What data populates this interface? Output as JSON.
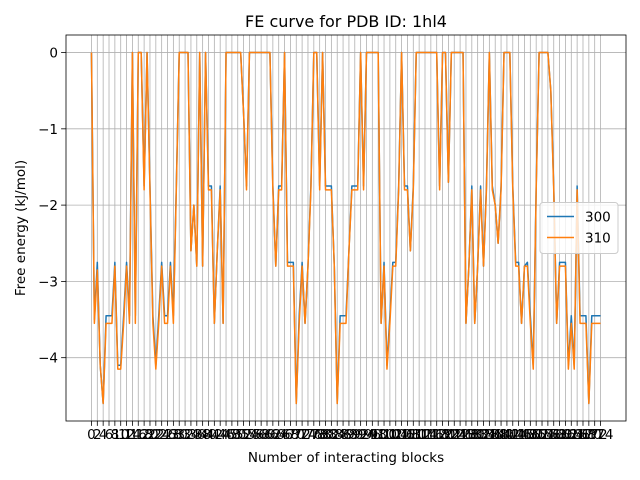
{
  "chart_data": {
    "type": "line",
    "title": "FE curve for PDB ID: 1hl4",
    "xlabel": "Number of interacting blocks",
    "ylabel": "Free energy (kJ/mol)",
    "x": [
      0,
      1,
      2,
      3,
      4,
      5,
      6,
      7,
      8,
      9,
      10,
      11,
      12,
      13,
      14,
      15,
      16,
      17,
      18,
      19,
      20,
      21,
      22,
      23,
      24,
      25,
      26,
      27,
      28,
      29,
      30,
      31,
      32,
      33,
      34,
      35,
      36,
      37,
      38,
      39,
      40,
      41,
      42,
      43,
      44,
      45,
      46,
      47,
      48,
      49,
      50,
      51,
      52,
      53,
      54,
      55,
      56,
      57,
      58,
      59,
      60,
      61,
      62,
      63,
      64,
      65,
      66,
      67,
      68,
      69,
      70,
      71,
      72,
      73,
      74,
      75,
      76,
      77,
      78,
      79,
      80,
      81,
      82,
      83,
      84,
      85,
      86,
      87,
      88,
      89,
      90,
      91,
      92,
      93,
      94,
      95,
      96,
      97,
      98,
      99,
      100,
      101,
      102,
      103,
      104,
      105,
      106,
      107,
      108,
      109,
      110,
      111,
      112,
      113,
      114,
      115,
      116,
      117,
      118,
      119,
      120,
      121,
      122,
      123,
      124,
      125,
      126,
      127,
      128,
      129,
      130,
      131,
      132,
      133,
      134,
      135,
      136,
      137,
      138,
      139,
      140,
      141,
      142,
      143,
      144,
      145,
      146,
      147,
      148,
      149,
      150,
      151,
      152,
      153,
      154,
      155,
      156,
      157,
      158,
      159,
      160,
      161,
      162,
      163,
      164,
      165,
      166,
      167,
      168,
      169,
      170,
      171,
      172,
      173,
      174
    ],
    "series": [
      {
        "name": "300",
        "color": "#1f77b4",
        "values": [
          0,
          -3.5,
          -2.75,
          -4.1,
          -4.6,
          -3.45,
          -3.45,
          -3.45,
          -2.75,
          -4.1,
          -4.1,
          -3.45,
          -2.75,
          -3.45,
          0,
          -3.45,
          0,
          0,
          -1.75,
          0,
          -1.75,
          -3.45,
          -4.1,
          -3.45,
          -2.75,
          -3.45,
          -3.45,
          -2.75,
          -3.45,
          -1.75,
          0,
          0,
          0,
          0,
          -2.6,
          -2,
          -2.8,
          0,
          -2.8,
          0,
          -1.75,
          -1.75,
          -3.55,
          -2.6,
          -1.75,
          -3.55,
          0,
          0,
          0,
          0,
          0,
          0,
          -0.8,
          -1.75,
          0,
          0,
          0,
          0,
          0,
          0,
          0,
          0,
          -1.75,
          -2.8,
          -1.75,
          -1.75,
          0,
          -2.75,
          -2.75,
          -2.75,
          -4.6,
          -3.45,
          -2.75,
          -3.55,
          -2.8,
          -1.75,
          0,
          0,
          -1.75,
          0,
          -1.75,
          -1.75,
          -1.75,
          -2.8,
          -4.6,
          -3.45,
          -3.45,
          -3.45,
          -2.6,
          -1.75,
          -1.75,
          -1.75,
          0,
          -1.75,
          0,
          0,
          0,
          0,
          0,
          -3.55,
          -2.75,
          -4.1,
          -3.45,
          -2.75,
          -2.75,
          -1.75,
          0,
          -1.75,
          -1.75,
          -2.6,
          -1.75,
          0,
          0,
          0,
          0,
          0,
          0,
          0,
          0,
          -1.75,
          0,
          0,
          -1.7,
          0,
          0,
          0,
          0,
          0,
          -3.55,
          -2.8,
          -1.75,
          -3.55,
          -2.8,
          -1.75,
          -2.8,
          -1.75,
          0,
          -1.75,
          -2,
          -2.5,
          -1.75,
          0,
          0,
          0,
          -1.75,
          -2.75,
          -2.75,
          -3.55,
          -2.8,
          -2.75,
          -3.45,
          -4.1,
          -1.75,
          0,
          0,
          0,
          0,
          -0.5,
          -1.75,
          -3.55,
          -2.75,
          -2.75,
          -2.75,
          -4.1,
          -3.45,
          -4.1,
          -1.75,
          -3.45,
          -3.45,
          -3.45,
          -4.6,
          -3.45,
          -3.45,
          -3.45,
          -3.45
        ]
      },
      {
        "name": "310",
        "color": "#ff7f0e",
        "values": [
          0,
          -3.55,
          -2.85,
          -4.1,
          -4.6,
          -3.55,
          -3.55,
          -3.55,
          -2.8,
          -4.15,
          -4.15,
          -3.55,
          -2.8,
          -3.55,
          0,
          -3.55,
          0,
          0,
          -1.8,
          0,
          -1.8,
          -3.55,
          -4.15,
          -3.55,
          -2.8,
          -3.55,
          -3.55,
          -2.8,
          -3.55,
          -1.8,
          0,
          0,
          0,
          0,
          -2.6,
          -2,
          -2.8,
          0,
          -2.8,
          0,
          -1.8,
          -1.8,
          -3.55,
          -2.6,
          -1.8,
          -3.55,
          0,
          0,
          0,
          0,
          0,
          0,
          -0.8,
          -1.8,
          0,
          0,
          0,
          0,
          0,
          0,
          0,
          0,
          -1.8,
          -2.8,
          -1.8,
          -1.8,
          0,
          -2.8,
          -2.8,
          -2.8,
          -4.6,
          -3.55,
          -2.8,
          -3.55,
          -2.8,
          -1.8,
          0,
          0,
          -1.8,
          0,
          -1.8,
          -1.8,
          -1.8,
          -2.8,
          -4.6,
          -3.55,
          -3.55,
          -3.55,
          -2.6,
          -1.8,
          -1.8,
          -1.8,
          0,
          -1.8,
          0,
          0,
          0,
          0,
          0,
          -3.55,
          -2.8,
          -4.15,
          -3.55,
          -2.8,
          -2.8,
          -1.8,
          0,
          -1.8,
          -1.8,
          -2.6,
          -1.8,
          0,
          0,
          0,
          0,
          0,
          0,
          0,
          0,
          -1.8,
          0,
          0,
          -1.7,
          0,
          0,
          0,
          0,
          0,
          -3.55,
          -2.8,
          -1.8,
          -3.55,
          -2.8,
          -1.8,
          -2.8,
          -1.8,
          0,
          -1.8,
          -2,
          -2.5,
          -1.8,
          0,
          0,
          0,
          -1.8,
          -2.8,
          -2.8,
          -3.55,
          -2.8,
          -2.8,
          -3.55,
          -4.15,
          -1.8,
          0,
          0,
          0,
          0,
          -0.5,
          -1.8,
          -3.55,
          -2.8,
          -2.8,
          -2.8,
          -4.15,
          -3.55,
          -4.15,
          -1.8,
          -3.55,
          -3.55,
          -3.55,
          -4.6,
          -3.55,
          -3.55,
          -3.55,
          -3.55
        ]
      }
    ],
    "xlim": [
      -8.7,
      182.7
    ],
    "ylim": [
      -4.83,
      0.23
    ],
    "xticks": [
      0,
      2,
      4,
      6,
      8,
      10,
      12,
      14,
      16,
      18,
      20,
      22,
      24,
      26,
      28,
      30,
      32,
      34,
      36,
      38,
      40,
      42,
      44,
      46,
      48,
      50,
      52,
      54,
      56,
      58,
      60,
      62,
      64,
      66,
      68,
      70,
      72,
      74,
      76,
      78,
      80,
      82,
      84,
      86,
      88,
      90,
      92,
      94,
      96,
      98,
      100,
      102,
      104,
      106,
      108,
      110,
      112,
      114,
      116,
      118,
      120,
      122,
      124,
      126,
      128,
      130,
      132,
      134,
      136,
      138,
      140,
      142,
      144,
      146,
      148,
      150,
      152,
      154,
      156,
      158,
      160,
      162,
      164,
      166,
      168,
      170,
      172,
      174
    ],
    "yticks": [
      {
        "value": -4,
        "label": "−4"
      },
      {
        "value": -3,
        "label": "−3"
      },
      {
        "value": -2,
        "label": "−2"
      },
      {
        "value": -1,
        "label": "−1"
      },
      0
    ],
    "grid": true,
    "legend": "center right"
  }
}
